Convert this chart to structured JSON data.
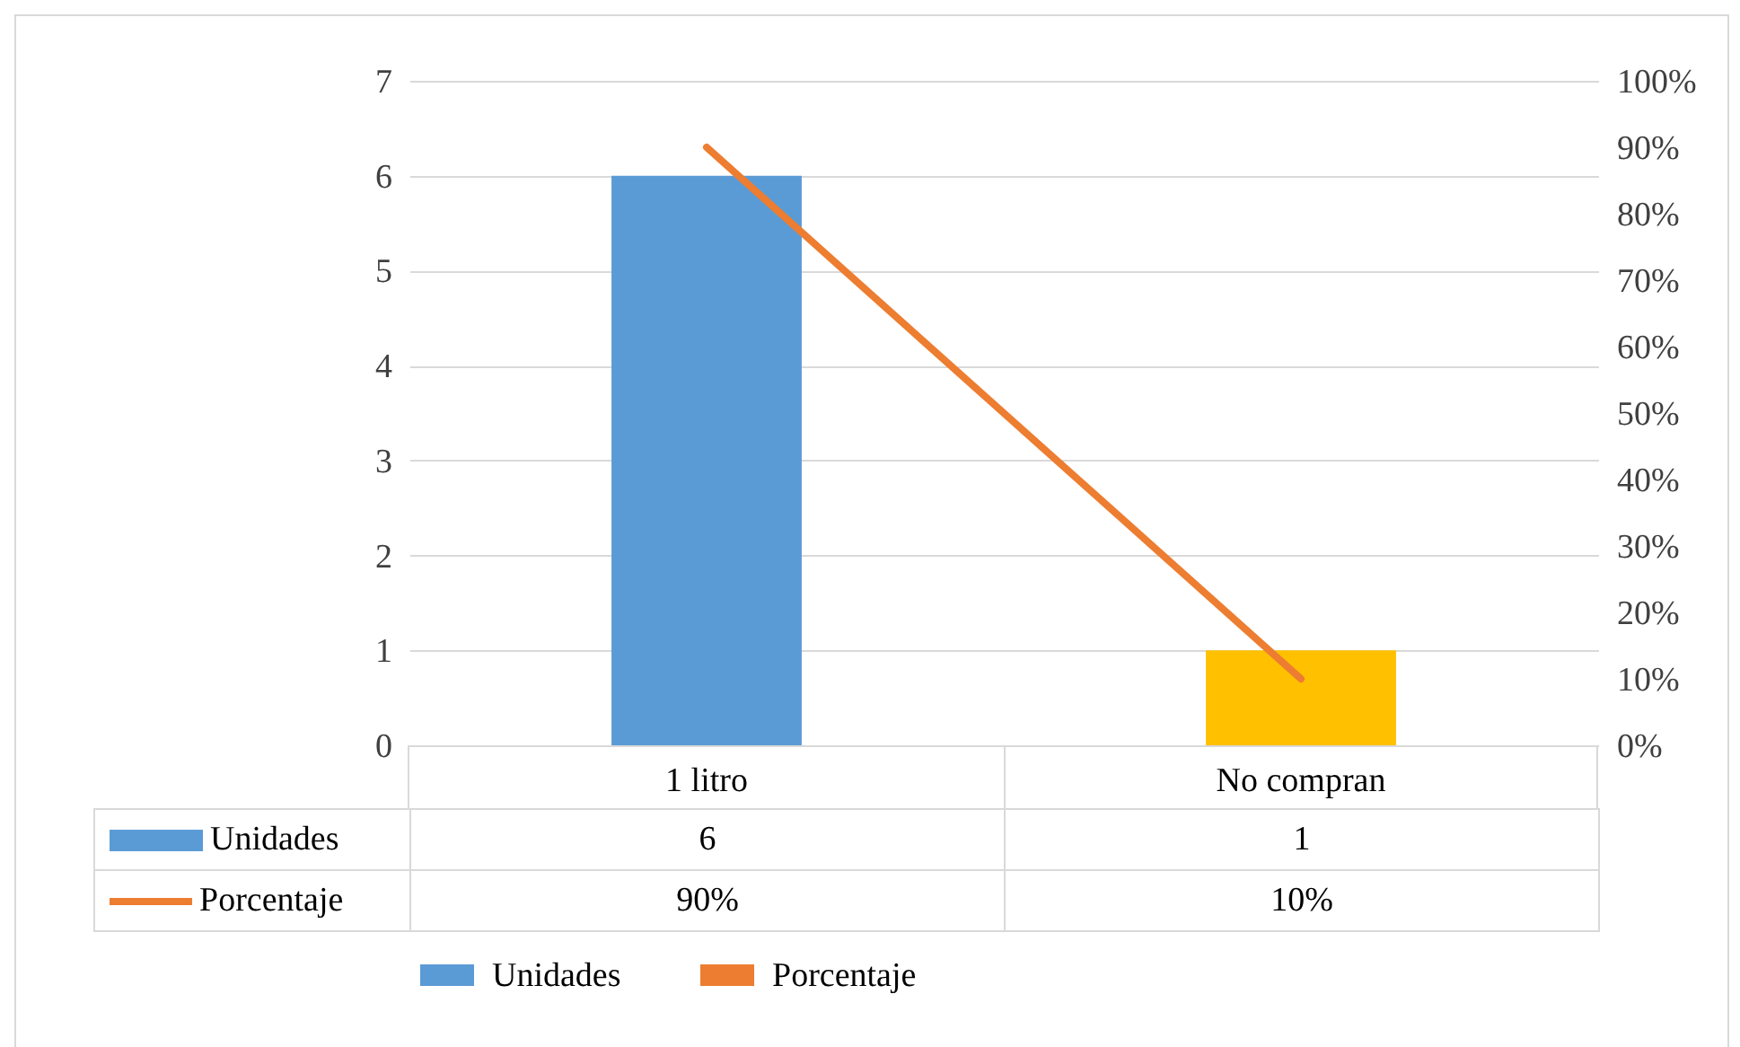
{
  "chart_data": {
    "type": "bar",
    "categories": [
      "1 litro",
      "No compran"
    ],
    "series": [
      {
        "name": "Unidades",
        "color": "#5b9bd5",
        "colors": [
          "#5b9bd5",
          "#ffc000"
        ],
        "values": [
          6,
          1
        ],
        "value_labels": [
          "6",
          "1"
        ]
      },
      {
        "name": "Porcentaje",
        "type": "line",
        "axis": "y2",
        "color": "#ed7d31",
        "values": [
          90,
          10
        ],
        "value_labels": [
          "90%",
          "10%"
        ]
      }
    ],
    "ylim": [
      0,
      7
    ],
    "yticks": [
      0,
      1,
      2,
      3,
      4,
      5,
      6,
      7
    ],
    "y2lim": [
      0,
      100
    ],
    "y2ticks": [
      {
        "value": 0,
        "label": "0%"
      },
      {
        "value": 10,
        "label": "10%"
      },
      {
        "value": 20,
        "label": "20%"
      },
      {
        "value": 30,
        "label": "30%"
      },
      {
        "value": 40,
        "label": "40%"
      },
      {
        "value": 50,
        "label": "50%"
      },
      {
        "value": 60,
        "label": "60%"
      },
      {
        "value": 70,
        "label": "70%"
      },
      {
        "value": 80,
        "label": "80%"
      },
      {
        "value": 90,
        "label": "90%"
      },
      {
        "value": 100,
        "label": "100%"
      }
    ],
    "grid": "y",
    "legend": "bottom",
    "marker": "none"
  }
}
